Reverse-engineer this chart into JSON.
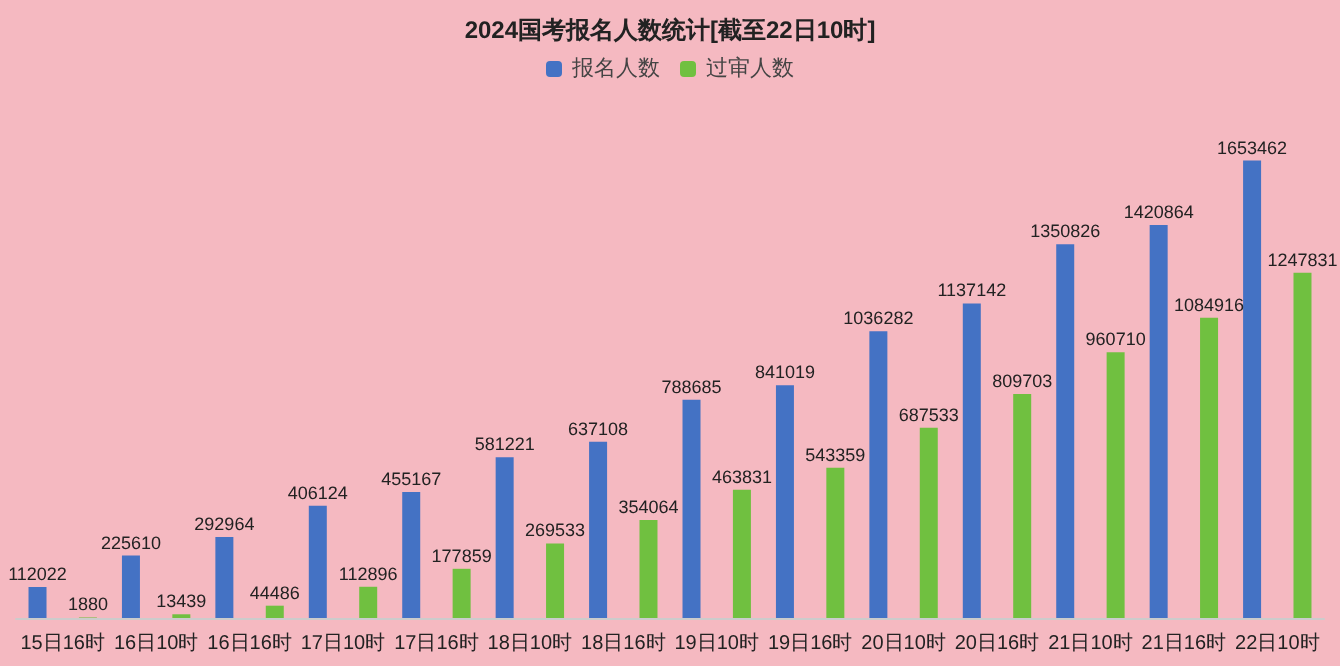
{
  "chart_data": {
    "type": "bar",
    "title": "2024国考报名人数统计[截至22日10时]",
    "categories": [
      "15日16时",
      "16日10时",
      "16日16时",
      "17日10时",
      "17日16时",
      "18日10时",
      "18日16时",
      "19日10时",
      "19日16时",
      "20日10时",
      "20日16时",
      "21日10时",
      "21日16时",
      "22日10时"
    ],
    "series": [
      {
        "name": "报名人数",
        "color": "#4472c4",
        "values": [
          112022,
          225610,
          292964,
          406124,
          455167,
          581221,
          637108,
          788685,
          841019,
          1036282,
          1137142,
          1350826,
          1420864,
          1653462
        ]
      },
      {
        "name": "过审人数",
        "color": "#70c040",
        "values": [
          1880,
          13439,
          44486,
          112896,
          177859,
          269533,
          354064,
          463831,
          543359,
          687533,
          809703,
          960710,
          1084916,
          1247831
        ]
      }
    ],
    "data_labels": true,
    "legend": "top"
  }
}
